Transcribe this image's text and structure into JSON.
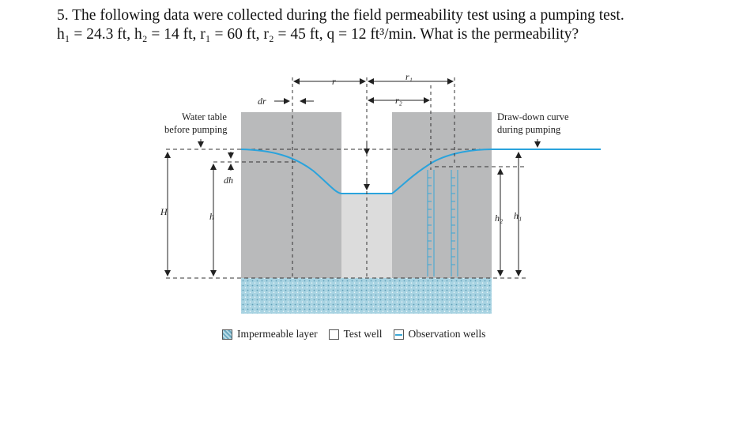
{
  "question": {
    "line1": "5. The following data were collected during the field permeability test using a pumping test.",
    "line2": "h₁ = 24.3 ft, h₂ = 14 ft, r₁ = 60 ft, r₂ = 45 ft, q = 12 ft³/min. What is the permeability?"
  },
  "figure": {
    "water_table_label_1": "Water table",
    "water_table_label_2": "before pumping",
    "drawdown_label_1": "Draw-down curve",
    "drawdown_label_2": "during pumping",
    "dr_label": "dr",
    "r_label": "r",
    "r1_label": "r₁",
    "r2_label": "r₂",
    "dh_label": "dh",
    "H_label": "H",
    "h_label": "h",
    "h1_label": "h₁",
    "h2_label": "h₂"
  },
  "legend": {
    "impermeable": "Impermeable layer",
    "test_well": "Test well",
    "observation_wells": "Observation wells"
  },
  "colors": {
    "soil": "#b9babb",
    "test_well": "#dcdcdc",
    "water_line": "#2aa3dc",
    "impermeable": "#9fcfe0",
    "observation_wells": "#3aa7d6"
  }
}
